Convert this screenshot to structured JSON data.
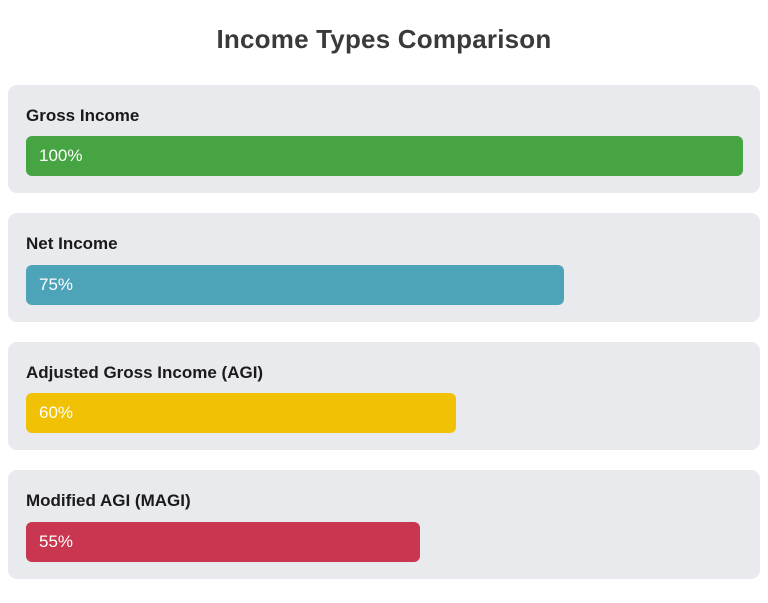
{
  "title": "Income Types Comparison",
  "chart_data": {
    "type": "bar",
    "orientation": "horizontal",
    "title": "Income Types Comparison",
    "categories": [
      "Gross Income",
      "Net Income",
      "Adjusted Gross Income (AGI)",
      "Modified AGI (MAGI)"
    ],
    "values": [
      100,
      75,
      60,
      55
    ],
    "value_labels": [
      "100%",
      "75%",
      "60%",
      "55%"
    ],
    "unit": "%",
    "xlim": [
      0,
      100
    ],
    "grid": false,
    "legend": false,
    "bar_colors": [
      "#47a442",
      "#4da3b8",
      "#f0c104",
      "#c9364f"
    ]
  },
  "bars": [
    {
      "label": "Gross Income",
      "value": 100,
      "value_label": "100%",
      "color": "#47a442"
    },
    {
      "label": "Net Income",
      "value": 75,
      "value_label": "75%",
      "color": "#4da3b8"
    },
    {
      "label": "Adjusted Gross Income (AGI)",
      "value": 60,
      "value_label": "60%",
      "color": "#f0c104"
    },
    {
      "label": "Modified AGI (MAGI)",
      "value": 55,
      "value_label": "55%",
      "color": "#c9364f"
    }
  ],
  "colors": {
    "card_background": "#e8eaed",
    "title_text": "#3a3a3a",
    "label_text": "#1a1a1a",
    "bar_value_text": "#ffffff"
  }
}
